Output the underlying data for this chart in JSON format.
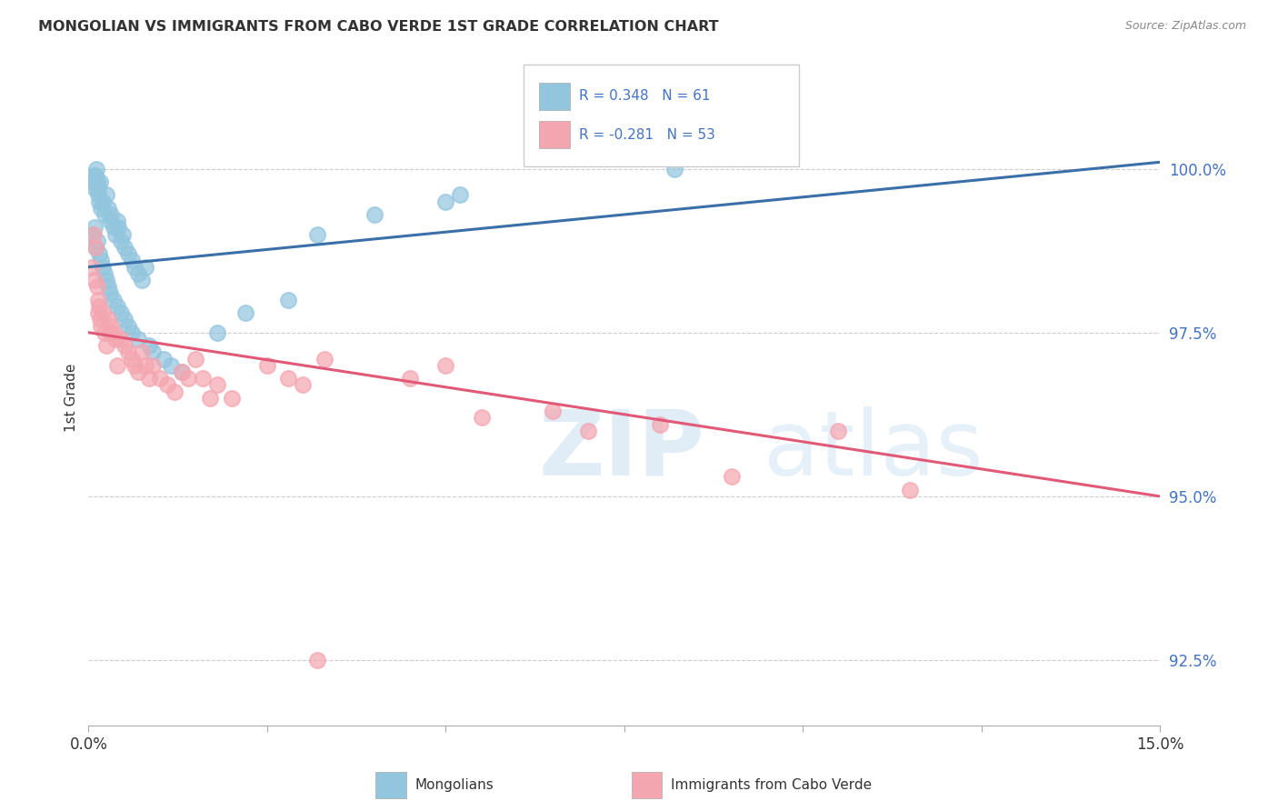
{
  "title": "MONGOLIAN VS IMMIGRANTS FROM CABO VERDE 1ST GRADE CORRELATION CHART",
  "source": "Source: ZipAtlas.com",
  "ylabel": "1st Grade",
  "xlim": [
    0.0,
    15.0
  ],
  "ylim": [
    91.5,
    101.5
  ],
  "yticks": [
    92.5,
    95.0,
    97.5,
    100.0
  ],
  "ytick_labels": [
    "92.5%",
    "95.0%",
    "97.5%",
    "100.0%"
  ],
  "xticks": [
    0.0,
    2.5,
    5.0,
    7.5,
    10.0,
    12.5,
    15.0
  ],
  "blue_color": "#92c5de",
  "pink_color": "#f4a6b0",
  "blue_line_color": "#3a6fa8",
  "pink_line_color": "#e05a78",
  "watermark_zip": "ZIP",
  "watermark_atlas": "atlas",
  "blue_line_x": [
    0.0,
    15.0
  ],
  "blue_line_y": [
    98.5,
    100.1
  ],
  "pink_line_x": [
    0.0,
    15.0
  ],
  "pink_line_y": [
    97.5,
    95.0
  ],
  "mongolians_x": [
    0.05,
    0.07,
    0.09,
    0.1,
    0.11,
    0.12,
    0.13,
    0.14,
    0.15,
    0.16,
    0.18,
    0.2,
    0.22,
    0.25,
    0.28,
    0.3,
    0.32,
    0.35,
    0.38,
    0.4,
    0.42,
    0.45,
    0.48,
    0.5,
    0.55,
    0.6,
    0.65,
    0.7,
    0.75,
    0.8,
    0.05,
    0.08,
    0.1,
    0.12,
    0.15,
    0.18,
    0.2,
    0.22,
    0.25,
    0.28,
    0.3,
    0.35,
    0.4,
    0.45,
    0.5,
    0.55,
    0.6,
    0.7,
    0.85,
    0.9,
    1.05,
    1.15,
    1.3,
    1.8,
    2.2,
    2.8,
    3.2,
    4.0,
    5.0,
    5.2,
    8.2
  ],
  "mongolians_y": [
    99.8,
    99.9,
    99.7,
    99.9,
    100.0,
    99.8,
    99.7,
    99.6,
    99.5,
    99.8,
    99.4,
    99.5,
    99.3,
    99.6,
    99.4,
    99.2,
    99.3,
    99.1,
    99.0,
    99.2,
    99.1,
    98.9,
    99.0,
    98.8,
    98.7,
    98.6,
    98.5,
    98.4,
    98.3,
    98.5,
    99.0,
    99.1,
    98.8,
    98.9,
    98.7,
    98.6,
    98.5,
    98.4,
    98.3,
    98.2,
    98.1,
    98.0,
    97.9,
    97.8,
    97.7,
    97.6,
    97.5,
    97.4,
    97.3,
    97.2,
    97.1,
    97.0,
    96.9,
    97.5,
    97.8,
    98.0,
    99.0,
    99.3,
    99.5,
    99.6,
    100.0
  ],
  "caboverde_x": [
    0.05,
    0.07,
    0.09,
    0.1,
    0.12,
    0.13,
    0.14,
    0.15,
    0.16,
    0.18,
    0.2,
    0.22,
    0.25,
    0.28,
    0.3,
    0.32,
    0.35,
    0.38,
    0.4,
    0.45,
    0.5,
    0.55,
    0.6,
    0.65,
    0.7,
    0.75,
    0.8,
    0.85,
    0.9,
    1.0,
    1.1,
    1.2,
    1.3,
    1.4,
    1.5,
    1.6,
    1.7,
    1.8,
    2.0,
    2.5,
    2.8,
    3.0,
    3.3,
    4.5,
    5.0,
    5.5,
    6.5,
    7.0,
    8.0,
    9.0,
    10.5,
    11.5,
    3.2
  ],
  "caboverde_y": [
    98.5,
    99.0,
    98.3,
    98.8,
    98.2,
    97.8,
    98.0,
    97.9,
    97.7,
    97.6,
    97.8,
    97.5,
    97.3,
    97.7,
    97.5,
    97.6,
    97.5,
    97.4,
    97.0,
    97.4,
    97.3,
    97.2,
    97.1,
    97.0,
    96.9,
    97.2,
    97.0,
    96.8,
    97.0,
    96.8,
    96.7,
    96.6,
    96.9,
    96.8,
    97.1,
    96.8,
    96.5,
    96.7,
    96.5,
    97.0,
    96.8,
    96.7,
    97.1,
    96.8,
    97.0,
    96.2,
    96.3,
    96.0,
    96.1,
    95.3,
    96.0,
    95.1,
    92.5
  ]
}
